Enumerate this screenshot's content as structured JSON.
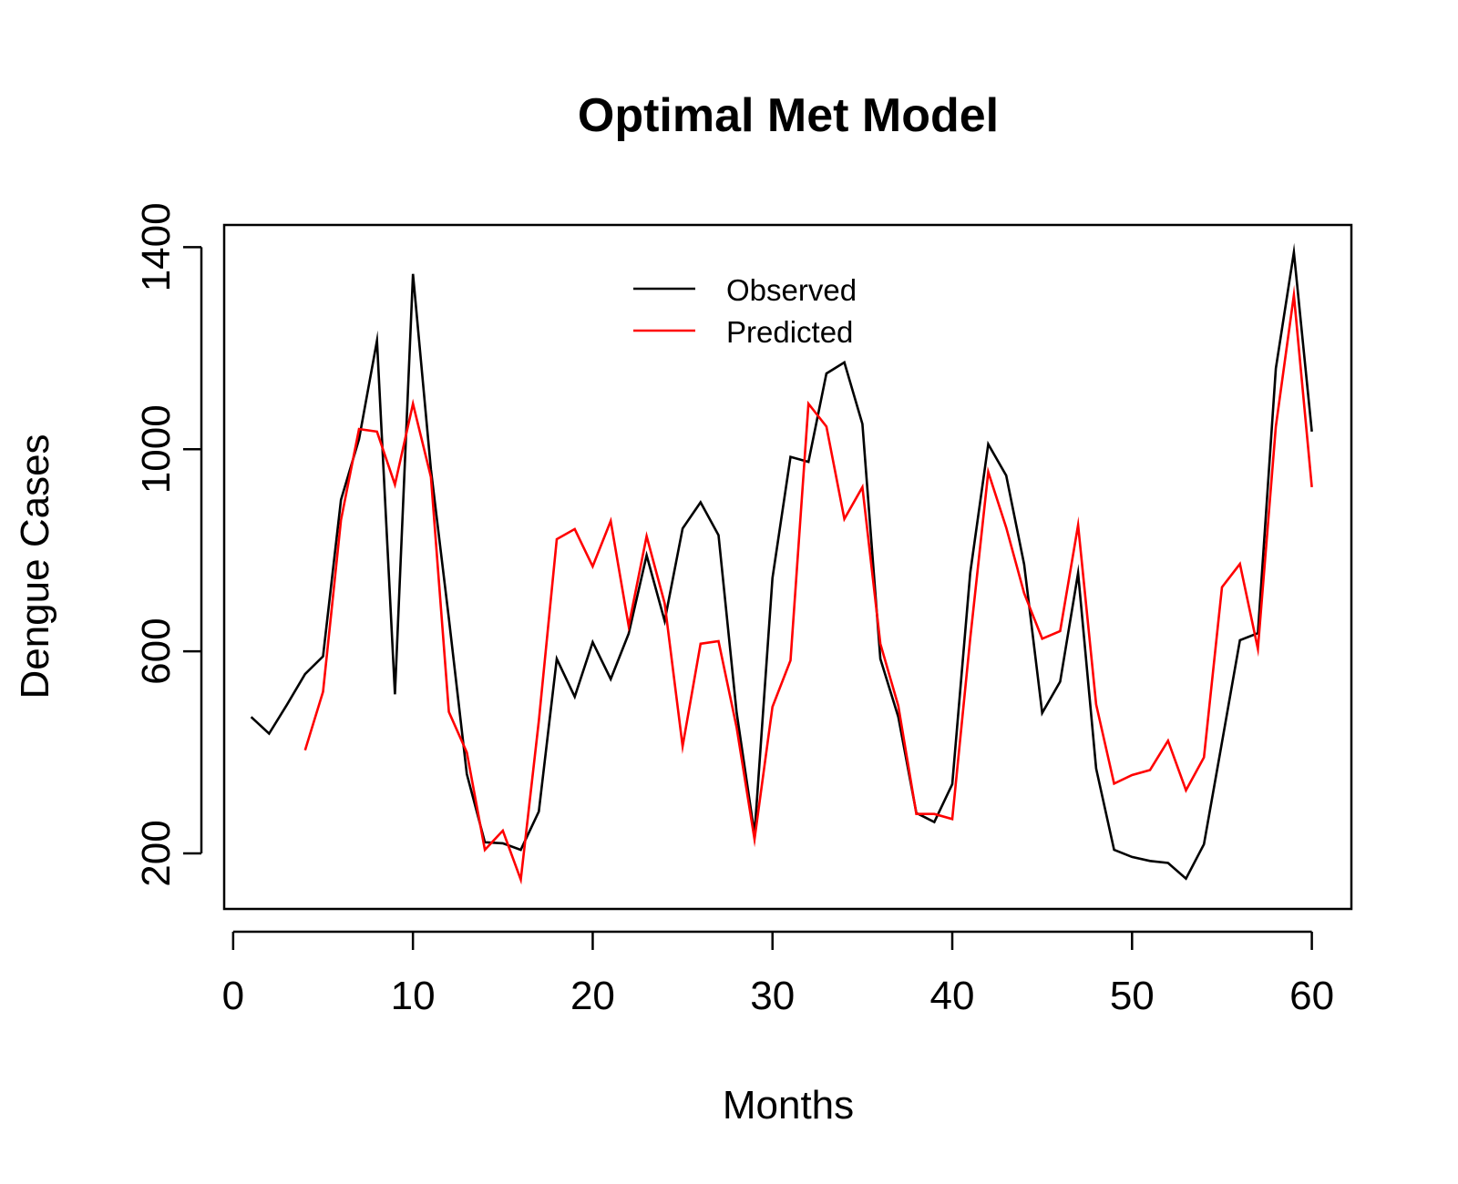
{
  "chart_data": {
    "type": "line",
    "title": "Optimal Met Model",
    "xlabel": "Months",
    "ylabel": "Dengue Cases",
    "xlim": [
      -0.5,
      62.2
    ],
    "ylim": [
      90,
      1444
    ],
    "xticks": [
      0,
      10,
      20,
      30,
      40,
      50,
      60
    ],
    "yticks": [
      200,
      600,
      1000,
      1400
    ],
    "grid": false,
    "legend_position": "top-center",
    "series": [
      {
        "name": "Observed",
        "color": "#000000",
        "x": [
          1,
          2,
          3,
          4,
          5,
          6,
          7,
          8,
          9,
          10,
          11,
          12,
          13,
          14,
          15,
          16,
          17,
          18,
          19,
          20,
          21,
          22,
          23,
          24,
          25,
          26,
          27,
          28,
          29,
          30,
          31,
          32,
          33,
          34,
          35,
          36,
          37,
          38,
          39,
          40,
          41,
          42,
          43,
          44,
          45,
          46,
          47,
          48,
          49,
          50,
          51,
          52,
          53,
          54,
          55,
          56,
          57,
          58,
          59,
          60
        ],
        "values": [
          470,
          437,
          495,
          555,
          590,
          900,
          1020,
          1215,
          515,
          1347,
          960,
          665,
          357,
          222,
          220,
          207,
          283,
          585,
          510,
          618,
          545,
          635,
          790,
          660,
          843,
          895,
          830,
          480,
          238,
          745,
          985,
          975,
          1150,
          1172,
          1050,
          585,
          470,
          280,
          262,
          337,
          755,
          1010,
          948,
          772,
          478,
          540,
          755,
          368,
          207,
          193,
          185,
          181,
          150,
          218,
          420,
          622,
          636,
          1160,
          1390,
          1035
        ]
      },
      {
        "name": "Predicted",
        "color": "#ff0000",
        "x": [
          4,
          5,
          6,
          7,
          8,
          9,
          10,
          11,
          12,
          13,
          14,
          15,
          16,
          17,
          18,
          19,
          20,
          21,
          22,
          23,
          24,
          25,
          26,
          27,
          28,
          29,
          30,
          31,
          32,
          33,
          34,
          35,
          36,
          37,
          38,
          39,
          40,
          41,
          42,
          43,
          44,
          45,
          46,
          47,
          48,
          49,
          50,
          51,
          52,
          53,
          54,
          55,
          56,
          57,
          58,
          59,
          60
        ],
        "values": [
          404,
          520,
          860,
          1040,
          1035,
          930,
          1090,
          945,
          480,
          400,
          207,
          245,
          148,
          462,
          822,
          842,
          768,
          858,
          650,
          828,
          695,
          412,
          615,
          620,
          450,
          228,
          490,
          582,
          1090,
          1045,
          862,
          925,
          615,
          492,
          278,
          278,
          268,
          625,
          955,
          845,
          715,
          625,
          640,
          850,
          495,
          338,
          355,
          365,
          423,
          325,
          390,
          727,
          773,
          605,
          1045,
          1305,
          925
        ]
      }
    ]
  }
}
